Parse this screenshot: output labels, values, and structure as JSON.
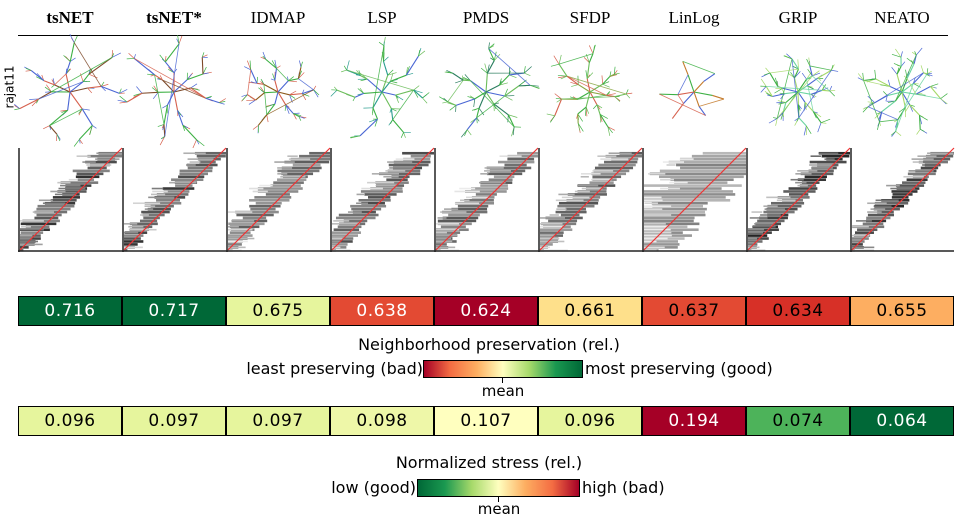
{
  "methods": [
    "tsNET",
    "tsNET*",
    "IDMAP",
    "LSP",
    "PMDS",
    "SFDP",
    "LinLog",
    "GRIP",
    "NEATO"
  ],
  "bold_methods": [
    "tsNET",
    "tsNET*"
  ],
  "row_label": "rajat11",
  "colormap": {
    "good": "#006837",
    "mid_good": "#1a9850",
    "light_good": "#a6d96a",
    "mean": "#ffffbf",
    "light_bad": "#fdae61",
    "mid_bad": "#f46d43",
    "bad": "#a50026"
  },
  "chart_data": [
    {
      "type": "table",
      "title": "Neighborhood preservation (rel.)",
      "legend_left": "least preserving (bad)",
      "legend_right": "most preserving (good)",
      "legend_mid": "mean",
      "categories": [
        "tsNET",
        "tsNET*",
        "IDMAP",
        "LSP",
        "PMDS",
        "SFDP",
        "LinLog",
        "GRIP",
        "NEATO"
      ],
      "values": [
        0.716,
        0.717,
        0.675,
        0.638,
        0.624,
        0.661,
        0.637,
        0.634,
        0.655
      ],
      "labels": [
        "0.716",
        "0.717",
        "0.675",
        "0.638",
        "0.624",
        "0.661",
        "0.637",
        "0.634",
        "0.655"
      ],
      "cell_colors": [
        "#006837",
        "#006837",
        "#e6f59d",
        "#e34a33",
        "#a50026",
        "#fee08b",
        "#e34a33",
        "#d73027",
        "#fdae61"
      ],
      "text_colors": [
        "#ffffff",
        "#ffffff",
        "#000000",
        "#ffffff",
        "#ffffff",
        "#000000",
        "#000000",
        "#000000",
        "#000000"
      ]
    },
    {
      "type": "table",
      "title": "Normalized stress (rel.)",
      "legend_left": "low (good)",
      "legend_right": "high (bad)",
      "legend_mid": "mean",
      "categories": [
        "tsNET",
        "tsNET*",
        "IDMAP",
        "LSP",
        "PMDS",
        "SFDP",
        "LinLog",
        "GRIP",
        "NEATO"
      ],
      "values": [
        0.096,
        0.097,
        0.097,
        0.098,
        0.107,
        0.096,
        0.194,
        0.074,
        0.064
      ],
      "labels": [
        "0.096",
        "0.097",
        "0.097",
        "0.098",
        "0.107",
        "0.096",
        "0.194",
        "0.074",
        "0.064"
      ],
      "cell_colors": [
        "#e6f59d",
        "#e6f59d",
        "#e6f59d",
        "#eef7a8",
        "#ffffbf",
        "#e6f59d",
        "#a50026",
        "#4db35a",
        "#006837"
      ],
      "text_colors": [
        "#000000",
        "#000000",
        "#000000",
        "#000000",
        "#000000",
        "#000000",
        "#ffffff",
        "#000000",
        "#ffffff"
      ]
    }
  ],
  "panel_styles": [
    {
      "layout": "radial",
      "edge_colors": [
        "#3cb043",
        "#7e4a2a",
        "#d6604d",
        "#4a66d4"
      ],
      "spread": 1.0
    },
    {
      "layout": "radial",
      "edge_colors": [
        "#3cb043",
        "#7e4a2a",
        "#d6604d",
        "#4a66d4"
      ],
      "spread": 1.0
    },
    {
      "layout": "tree",
      "edge_colors": [
        "#3cb043",
        "#8c5a1a",
        "#d6604d",
        "#4a66d4"
      ],
      "spread": 0.7
    },
    {
      "layout": "loop",
      "edge_colors": [
        "#3cb043",
        "#4a66d4",
        "#6bbd5a",
        "#2a9d8f"
      ],
      "spread": 0.9
    },
    {
      "layout": "loop",
      "edge_colors": [
        "#3cb043",
        "#4a66d4",
        "#6bbd5a",
        "#2a7d5f"
      ],
      "spread": 0.9
    },
    {
      "layout": "radial",
      "edge_colors": [
        "#3cb043",
        "#8aa642",
        "#d6604d",
        "#6bbd5a"
      ],
      "spread": 0.8
    },
    {
      "layout": "sparse",
      "edge_colors": [
        "#d6604d",
        "#3cb043",
        "#c47a2a",
        "#4a66d4"
      ],
      "spread": 1.0
    },
    {
      "layout": "dense",
      "edge_colors": [
        "#3cb043",
        "#6bd4a0",
        "#4a66d4",
        "#a6d96a"
      ],
      "spread": 0.7
    },
    {
      "layout": "dense",
      "edge_colors": [
        "#3cb043",
        "#6bd4a0",
        "#4a66d4",
        "#a6d96a"
      ],
      "spread": 0.8
    }
  ],
  "shepard_styles": [
    {
      "spread": 0.18,
      "darkness": 0.9
    },
    {
      "spread": 0.18,
      "darkness": 0.9
    },
    {
      "spread": 0.22,
      "darkness": 0.7
    },
    {
      "spread": 0.2,
      "darkness": 0.8
    },
    {
      "spread": 0.22,
      "darkness": 0.75
    },
    {
      "spread": 0.2,
      "darkness": 0.75
    },
    {
      "spread": 0.55,
      "darkness": 0.55
    },
    {
      "spread": 0.18,
      "darkness": 0.95
    },
    {
      "spread": 0.16,
      "darkness": 0.95
    }
  ]
}
